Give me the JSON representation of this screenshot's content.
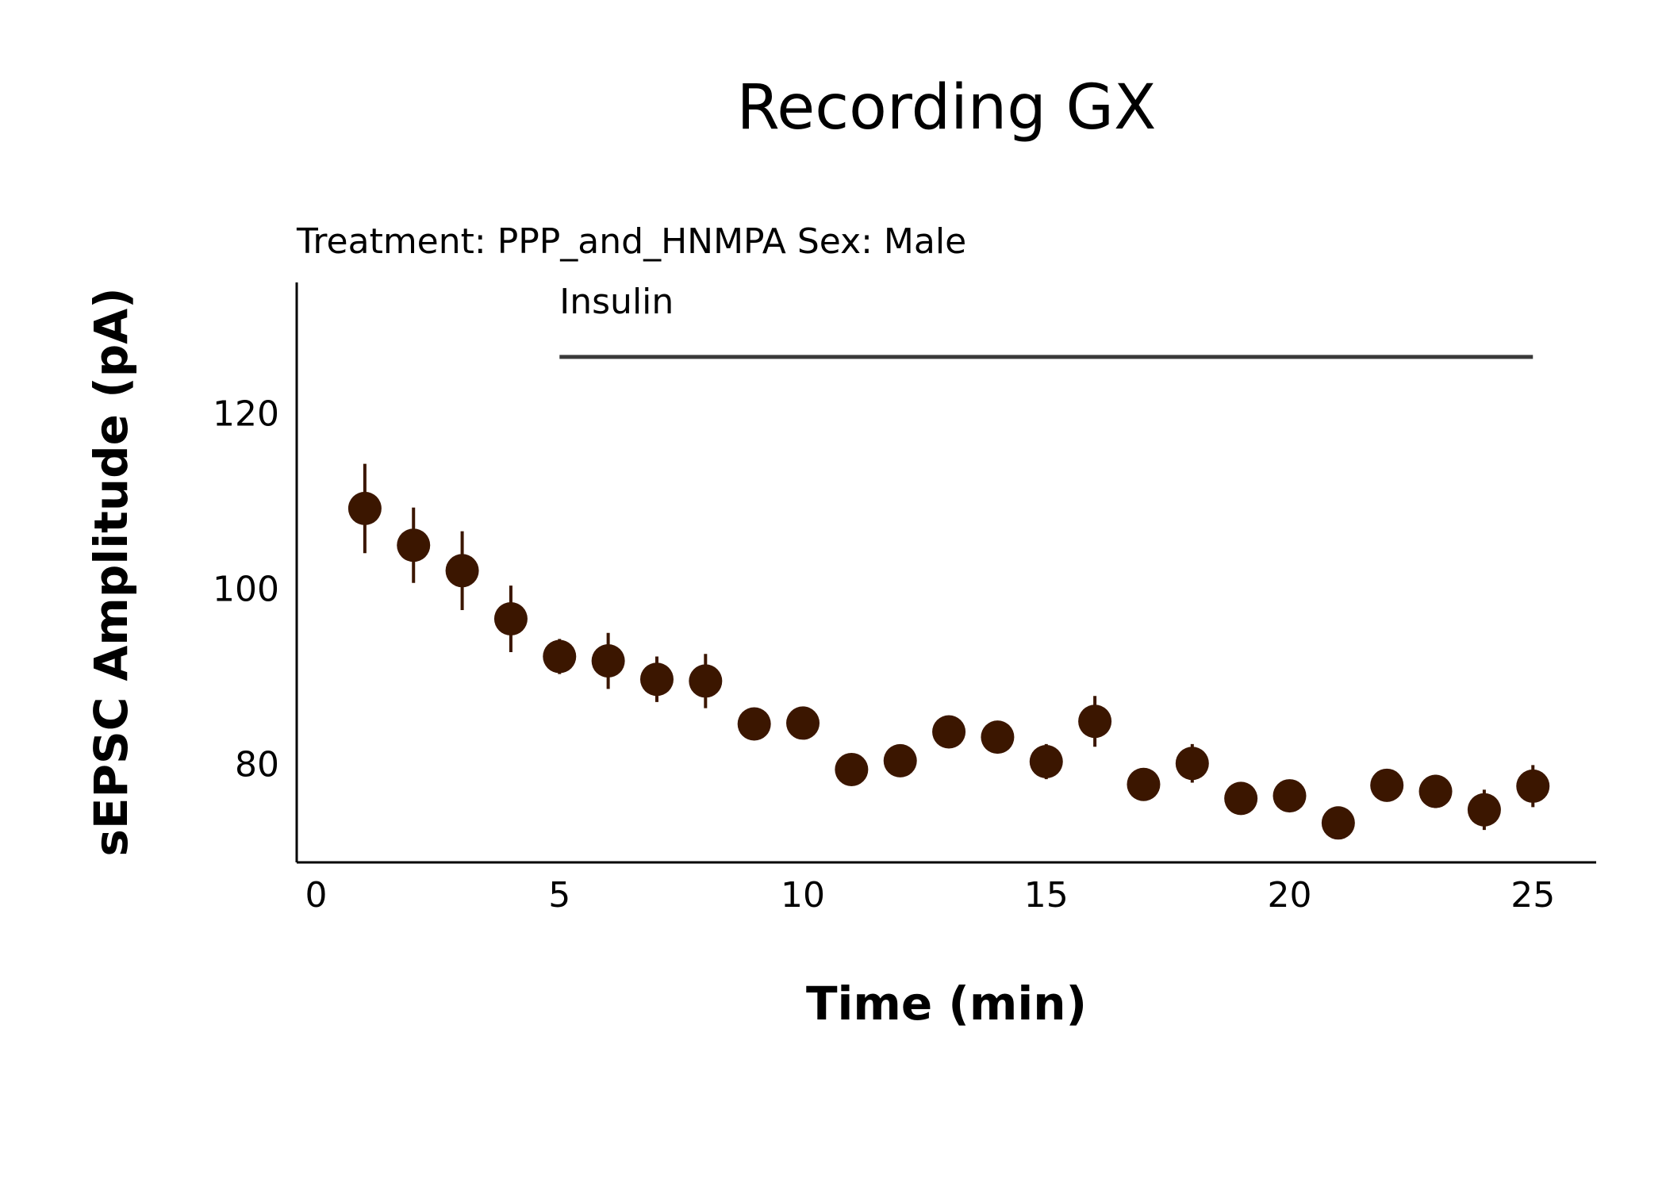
{
  "chart_data": {
    "type": "scatter",
    "title": "Recording GX",
    "subtitle": "Treatment: PPP_and_HNMPA  Sex: Male",
    "xlabel": "Time (min)",
    "ylabel": "sEPSC Amplitude (pA)",
    "xlim": [
      -0.4,
      26.3
    ],
    "ylim": [
      68.8,
      135
    ],
    "x_ticks": [
      "0",
      "5",
      "10",
      "15",
      "20",
      "25"
    ],
    "y_ticks": [
      "80",
      "100",
      "120"
    ],
    "grid": false,
    "legend": "none",
    "point_color": "#3b1600",
    "annotation": {
      "label": "Insulin",
      "x_start": 5,
      "x_end": 25,
      "y": 126.5,
      "line_color": "#3a3a3a"
    },
    "series": [
      {
        "x": [
          1,
          2,
          3,
          4,
          5,
          6,
          7,
          8,
          9,
          10,
          11,
          12,
          13,
          14,
          15,
          16,
          17,
          18,
          19,
          20,
          21,
          22,
          23,
          24,
          25
        ],
        "y": [
          109.2,
          105.0,
          102.1,
          96.6,
          92.3,
          91.8,
          89.7,
          89.5,
          84.6,
          84.7,
          79.4,
          80.4,
          83.7,
          83.1,
          80.3,
          84.9,
          77.7,
          80.1,
          76.1,
          76.4,
          73.3,
          77.6,
          76.9,
          74.8,
          77.5
        ],
        "error": [
          5.1,
          4.3,
          4.5,
          3.8,
          2.0,
          3.2,
          2.6,
          3.1,
          0.6,
          0.6,
          0.6,
          0.8,
          0.8,
          1.8,
          2.0,
          2.9,
          1.2,
          2.2,
          0.5,
          0.9,
          0.4,
          0.8,
          1.9,
          2.3,
          2.4
        ]
      }
    ]
  }
}
